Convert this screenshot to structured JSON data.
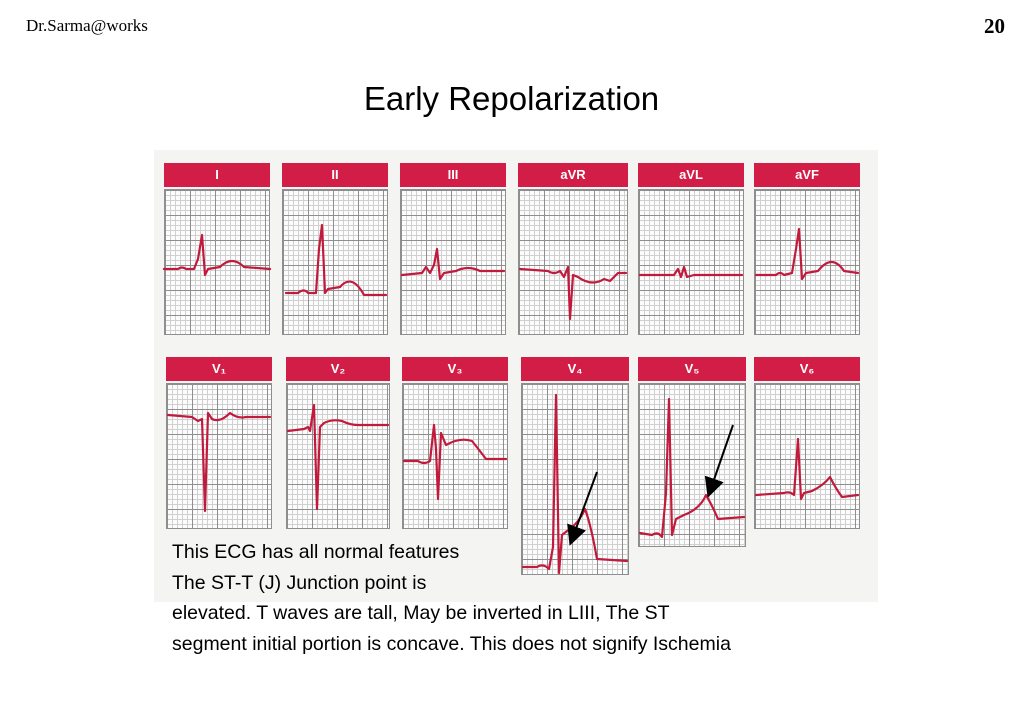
{
  "header": {
    "author": "Dr.Sarma@works",
    "page_number": "20"
  },
  "title": "Early Repolarization",
  "ecg": {
    "leads_row1": [
      "I",
      "II",
      "III",
      "aVR",
      "aVL",
      "aVF"
    ],
    "leads_row2": [
      "V₁",
      "V₂",
      "V₃",
      "V₄",
      "V₅",
      "V₆"
    ],
    "trace_color": "#c21a3c",
    "header_color": "#d21e46",
    "arrows_on_leads": [
      "V₄",
      "V₅"
    ]
  },
  "caption": {
    "line1": "This ECG has all normal features",
    "line2": "The ST-T (J) Junction point is",
    "line3": "elevated. T waves are tall, May be inverted in LIII, The ST",
    "line4": "segment initial portion is concave. This does not signify Ischemia"
  }
}
